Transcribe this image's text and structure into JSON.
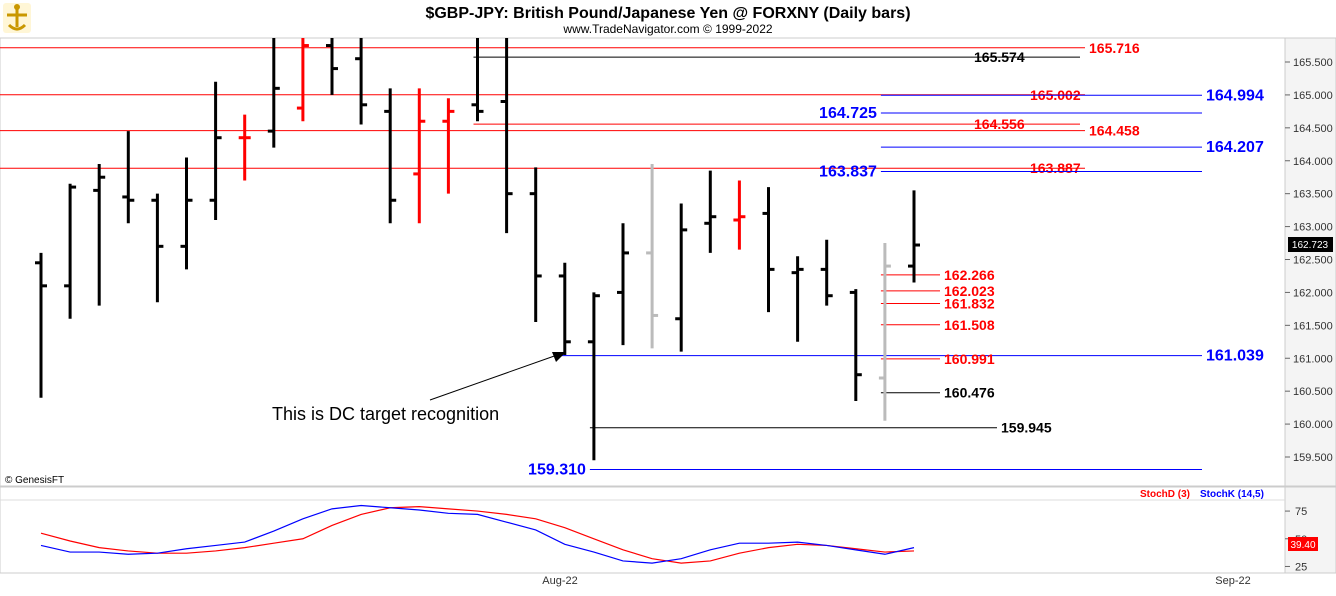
{
  "chart_data": [
    {
      "type": "ohlc",
      "title": "$GBP-JPY:  British Pound/Japanese Yen @ FORXNY  (Daily bars)",
      "subtitle": "www.TradeNavigator.com © 1999-2022",
      "credit": "© GenesisFT",
      "x_labels": [
        "Aug-22",
        "Sep-22"
      ],
      "y_ticks": [
        "165.500",
        "165.000",
        "164.500",
        "164.000",
        "163.500",
        "163.000",
        "162.500",
        "162.000",
        "161.500",
        "161.000",
        "160.500",
        "160.000",
        "159.500"
      ],
      "ylim": [
        159.3,
        165.9
      ],
      "last_price": "162.723",
      "bars": [
        {
          "o": 162.45,
          "h": 162.6,
          "l": 160.4,
          "c": 162.1,
          "color": "#000000"
        },
        {
          "o": 162.1,
          "h": 163.65,
          "l": 161.6,
          "c": 163.6,
          "color": "#000000"
        },
        {
          "o": 163.55,
          "h": 163.95,
          "l": 161.8,
          "c": 163.75,
          "color": "#000000"
        },
        {
          "o": 163.45,
          "h": 164.45,
          "l": 163.05,
          "c": 163.4,
          "color": "#000000"
        },
        {
          "o": 163.4,
          "h": 163.5,
          "l": 161.85,
          "c": 162.7,
          "color": "#000000"
        },
        {
          "o": 162.7,
          "h": 164.05,
          "l": 162.35,
          "c": 163.4,
          "color": "#000000"
        },
        {
          "o": 163.4,
          "h": 165.2,
          "l": 163.1,
          "c": 164.35,
          "color": "#000000"
        },
        {
          "o": 164.35,
          "h": 164.7,
          "l": 163.7,
          "c": 164.35,
          "color": "#ff0000"
        },
        {
          "o": 164.45,
          "h": 165.9,
          "l": 164.2,
          "c": 165.1,
          "color": "#000000"
        },
        {
          "o": 164.8,
          "h": 165.9,
          "l": 164.6,
          "c": 165.75,
          "color": "#ff0000"
        },
        {
          "o": 165.75,
          "h": 165.9,
          "l": 165.0,
          "c": 165.4,
          "color": "#000000"
        },
        {
          "o": 165.55,
          "h": 165.9,
          "l": 164.55,
          "c": 164.85,
          "color": "#000000"
        },
        {
          "o": 164.75,
          "h": 165.1,
          "l": 163.05,
          "c": 163.4,
          "color": "#000000"
        },
        {
          "o": 163.8,
          "h": 165.1,
          "l": 163.05,
          "c": 164.6,
          "color": "#ff0000"
        },
        {
          "o": 164.6,
          "h": 164.95,
          "l": 163.5,
          "c": 164.75,
          "color": "#ff0000"
        },
        {
          "o": 164.85,
          "h": 165.9,
          "l": 164.6,
          "c": 164.75,
          "color": "#000000"
        },
        {
          "o": 164.9,
          "h": 165.9,
          "l": 162.9,
          "c": 163.5,
          "color": "#000000"
        },
        {
          "o": 163.5,
          "h": 163.9,
          "l": 161.55,
          "c": 162.25,
          "color": "#000000"
        },
        {
          "o": 162.25,
          "h": 162.45,
          "l": 161.05,
          "c": 161.25,
          "color": "#000000"
        },
        {
          "o": 161.25,
          "h": 162.0,
          "l": 159.45,
          "c": 161.95,
          "color": "#000000"
        },
        {
          "o": 162.0,
          "h": 163.05,
          "l": 161.2,
          "c": 162.6,
          "color": "#000000"
        },
        {
          "o": 162.6,
          "h": 163.95,
          "l": 161.15,
          "c": 161.65,
          "color": "#bbbbbb"
        },
        {
          "o": 161.6,
          "h": 163.35,
          "l": 161.1,
          "c": 162.95,
          "color": "#000000"
        },
        {
          "o": 163.05,
          "h": 163.85,
          "l": 162.6,
          "c": 163.15,
          "color": "#000000"
        },
        {
          "o": 163.1,
          "h": 163.7,
          "l": 162.65,
          "c": 163.15,
          "color": "#ff0000"
        },
        {
          "o": 163.2,
          "h": 163.6,
          "l": 161.7,
          "c": 162.35,
          "color": "#000000"
        },
        {
          "o": 162.3,
          "h": 162.55,
          "l": 161.25,
          "c": 162.35,
          "color": "#000000"
        },
        {
          "o": 162.35,
          "h": 162.8,
          "l": 161.8,
          "c": 161.95,
          "color": "#000000"
        },
        {
          "o": 162.0,
          "h": 162.05,
          "l": 160.35,
          "c": 160.75,
          "color": "#000000"
        },
        {
          "o": 160.7,
          "h": 162.75,
          "l": 160.05,
          "c": 162.4,
          "color": "#bbbbbb"
        },
        {
          "o": 162.4,
          "h": 163.55,
          "l": 162.15,
          "c": 162.72,
          "color": "#000000"
        }
      ],
      "levels": [
        {
          "value": 165.716,
          "label": "165.716",
          "color": "#ff0000",
          "from": "left",
          "to": "right",
          "label_pos": "right-inside",
          "size": "normal"
        },
        {
          "value": 165.574,
          "label": "165.574",
          "color": "#000000",
          "from": "bar-15",
          "to": "mid",
          "label_pos": "end",
          "size": "normal"
        },
        {
          "value": 165.002,
          "label": "165.002",
          "color": "#ff0000",
          "from": "left",
          "to": "right",
          "label_pos": "right-inside",
          "size": "normal"
        },
        {
          "value": 164.994,
          "label": "164.994",
          "color": "#0000ff",
          "from": "bar-29",
          "to": "plot-end",
          "label_pos": "end",
          "size": "big"
        },
        {
          "value": 164.725,
          "label": "164.725",
          "color": "#0000ff",
          "from": "bar-29",
          "to": "plot-end",
          "label_pos": "start",
          "size": "big"
        },
        {
          "value": 164.556,
          "label": "164.556",
          "color": "#ff0000",
          "from": "bar-15",
          "to": "mid",
          "label_pos": "end",
          "size": "normal"
        },
        {
          "value": 164.458,
          "label": "164.458",
          "color": "#ff0000",
          "from": "left",
          "to": "right",
          "label_pos": "right-inside",
          "size": "normal"
        },
        {
          "value": 164.207,
          "label": "164.207",
          "color": "#0000ff",
          "from": "bar-29",
          "to": "plot-end",
          "label_pos": "end",
          "size": "big"
        },
        {
          "value": 163.887,
          "label": "163.887",
          "color": "#ff0000",
          "from": "left",
          "to": "right",
          "label_pos": "right-inside",
          "size": "normal"
        },
        {
          "value": 163.837,
          "label": "163.837",
          "color": "#0000ff",
          "from": "bar-29",
          "to": "plot-end",
          "label_pos": "start",
          "size": "big"
        },
        {
          "value": 162.266,
          "label": "162.266",
          "color": "#ff0000",
          "from": "bar-29",
          "to": "short",
          "label_pos": "end",
          "size": "normal"
        },
        {
          "value": 162.023,
          "label": "162.023",
          "color": "#ff0000",
          "from": "bar-29",
          "to": "short",
          "label_pos": "end",
          "size": "normal"
        },
        {
          "value": 161.832,
          "label": "161.832",
          "color": "#ff0000",
          "from": "bar-29",
          "to": "short",
          "label_pos": "end",
          "size": "normal"
        },
        {
          "value": 161.508,
          "label": "161.508",
          "color": "#ff0000",
          "from": "bar-29",
          "to": "short",
          "label_pos": "end",
          "size": "normal"
        },
        {
          "value": 161.039,
          "label": "161.039",
          "color": "#0000ff",
          "from": "bar-18",
          "to": "plot-end",
          "label_pos": "end",
          "size": "big"
        },
        {
          "value": 160.991,
          "label": "160.991",
          "color": "#ff0000",
          "from": "bar-29",
          "to": "short",
          "label_pos": "end",
          "size": "normal"
        },
        {
          "value": 160.476,
          "label": "160.476",
          "color": "#000000",
          "from": "bar-29",
          "to": "short",
          "label_pos": "end",
          "size": "normal"
        },
        {
          "value": 159.945,
          "label": "159.945",
          "color": "#000000",
          "from": "bar-19",
          "to": "mid-right",
          "label_pos": "end",
          "size": "normal"
        },
        {
          "value": 159.31,
          "label": "159.310",
          "color": "#0000ff",
          "from": "bar-19",
          "to": "plot-end",
          "label_pos": "start",
          "size": "big"
        }
      ],
      "annotation": "This is DC target recognition"
    },
    {
      "type": "line",
      "title": "",
      "legend": [
        {
          "name": "StochD (3)",
          "color": "#ff0000"
        },
        {
          "name": "StochK (14,5)",
          "color": "#0000ff"
        }
      ],
      "y_ticks": [
        "75",
        "50",
        "25"
      ],
      "ylim": [
        20,
        85
      ],
      "last_value": "39.40",
      "series": [
        {
          "name": "StochD (3)",
          "color": "#ff0000",
          "values": [
            55,
            48,
            42,
            39,
            37,
            37,
            39,
            42,
            46,
            50,
            62,
            72,
            78,
            79,
            77,
            75,
            72,
            68,
            60,
            50,
            40,
            32,
            28,
            30,
            37,
            42,
            45,
            44,
            41,
            38,
            39
          ]
        },
        {
          "name": "StochK (14,5)",
          "color": "#0000ff",
          "values": [
            44,
            38,
            38,
            36,
            37,
            41,
            44,
            47,
            57,
            68,
            77,
            80,
            78,
            76,
            73,
            72,
            65,
            58,
            45,
            38,
            30,
            28,
            32,
            40,
            46,
            46,
            47,
            44,
            40,
            36,
            42
          ]
        }
      ]
    }
  ]
}
